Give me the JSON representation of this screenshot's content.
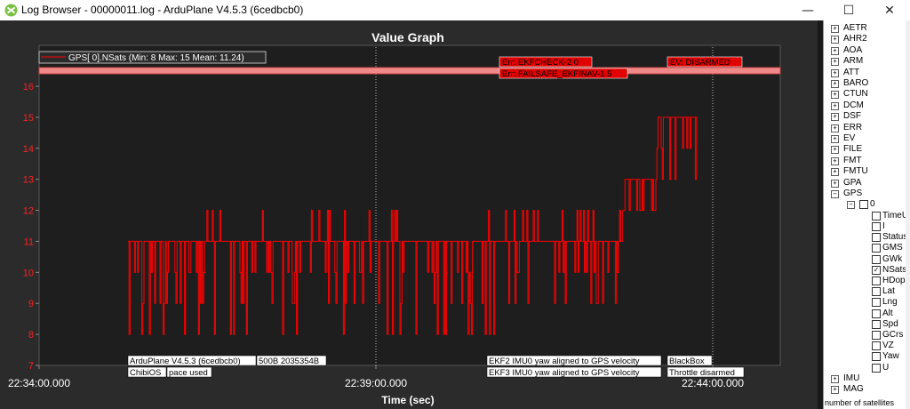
{
  "window": {
    "title": "Log Browser - 00000011.log - ArduPlane V4.5.3 (6cedbcb0)",
    "minimize_glyph": "—",
    "maximize_glyph": "☐",
    "close_glyph": "✕"
  },
  "graph": {
    "title": "Value Graph",
    "xlabel": "Time (sec)",
    "legend": "GPS[ 0].NSats  (Min: 8 Max: 15 Mean: 11.24)",
    "y_ticks": [
      "16",
      "15",
      "14",
      "13",
      "12",
      "11",
      "10",
      "9",
      "8",
      "7"
    ],
    "x_ticks": [
      "22:34:00.000",
      "22:39:00.000",
      "22:44:00.000"
    ],
    "events_top": [
      "Err: EKFCHECK-2 0",
      "Err: FAILSAFE_EKFINAV-1 5",
      "EV: DISARMED"
    ],
    "messages_bottom": [
      [
        "ArduPlane V4.5.3 (6cedbcb0)",
        "500B 2035354B",
        "ChibiOS",
        "pace used"
      ],
      [
        "EKF2 IMU0 yaw aligned to GPS velocity",
        "EKF3 IMU0 yaw aligned to GPS velocity"
      ],
      [
        "BlackBox",
        "Throttle disarmed"
      ]
    ]
  },
  "chart_data": {
    "type": "line",
    "title": "Value Graph",
    "xlabel": "Time (sec)",
    "ylabel": "",
    "ylim": [
      7,
      16
    ],
    "x_tick_labels": [
      "22:34:00.000",
      "22:39:00.000",
      "22:44:00.000"
    ],
    "series": [
      {
        "name": "GPS[ 0].NSats",
        "color": "#ff0000",
        "x": [
          "22:35:50",
          "22:36:30",
          "22:37:00",
          "22:37:50",
          "22:38:40",
          "22:39:30",
          "22:40:30",
          "22:41:40",
          "22:42:20",
          "22:42:50",
          "22:43:20",
          "22:43:50"
        ],
        "values": [
          11,
          10,
          11,
          11.5,
          11,
          11.5,
          11,
          11,
          11.5,
          12.5,
          14.5,
          14
        ]
      }
    ],
    "stats": {
      "min": 8,
      "max": 15,
      "mean": 11.24
    },
    "grid": true,
    "legend": "top-left"
  },
  "tree": {
    "items": [
      "AETR",
      "AHR2",
      "AOA",
      "ARM",
      "ATT",
      "BARO",
      "CTUN",
      "DCM",
      "DSF",
      "ERR",
      "EV",
      "FILE",
      "FMT",
      "FMTU",
      "GPA",
      "GPS"
    ],
    "gps_instance": "0",
    "gps_fields": [
      "TimeUS",
      "I",
      "Status",
      "GMS",
      "GWk",
      "NSats",
      "HDop",
      "Lat",
      "Lng",
      "Alt",
      "Spd",
      "GCrs",
      "VZ",
      "Yaw",
      "U"
    ],
    "gps_checked": "NSats",
    "after_items": [
      "IMU",
      "MAG"
    ],
    "status": "number of satellites"
  }
}
